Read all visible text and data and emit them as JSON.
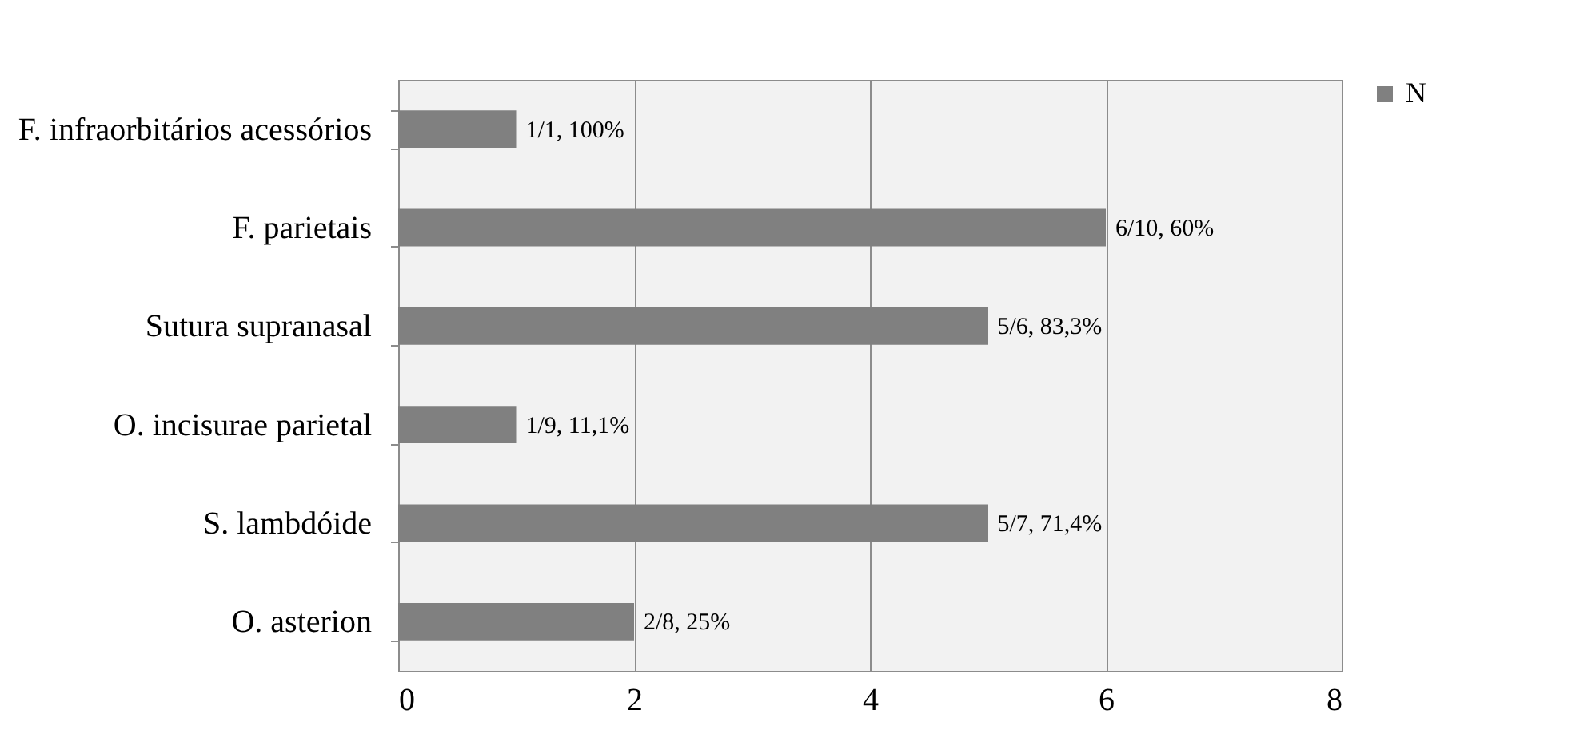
{
  "chart_data": {
    "type": "bar",
    "orientation": "horizontal",
    "categories": [
      "F. infraorbitários acessórios",
      "F. parietais",
      "Sutura supranasal",
      "O. incisurae parietal",
      "S. lambdóide",
      "O. asterion"
    ],
    "series": [
      {
        "name": "N",
        "color": "#808080",
        "values": [
          1,
          6,
          5,
          1,
          5,
          2
        ],
        "value_labels": [
          "1/1, 100%",
          "6/10, 60%",
          "5/6, 83,3%",
          "1/9, 11,1%",
          "5/7, 71,4%",
          "2/8, 25%"
        ]
      }
    ],
    "xlim": [
      0,
      8
    ],
    "xticks": [
      0,
      2,
      4,
      6,
      8
    ],
    "grid": "x",
    "legend": "right"
  }
}
